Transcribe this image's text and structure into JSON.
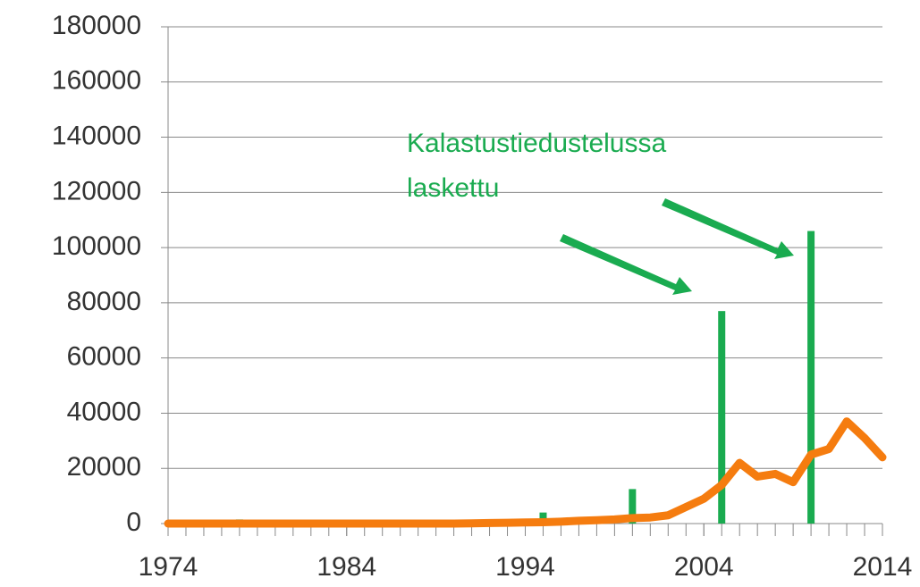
{
  "chart_data": {
    "type": "combo",
    "annotation": [
      "Kalastustiedustelussa",
      "laskettu"
    ],
    "annotation_color": "#1aab50",
    "xlim": [
      1974,
      2014
    ],
    "xticks": [
      1974,
      1984,
      1994,
      2004,
      2014
    ],
    "ylim": [
      0,
      180000
    ],
    "yticks": [
      0,
      20000,
      40000,
      60000,
      80000,
      100000,
      120000,
      140000,
      160000,
      180000
    ],
    "grid": true,
    "series": [
      {
        "type": "bar",
        "color": "#1aab50",
        "x": [
          1978,
          1995,
          2000,
          2005,
          2010
        ],
        "values": [
          1500,
          4000,
          12500,
          77000,
          106000
        ]
      },
      {
        "type": "line",
        "color": "#f57c0f",
        "x": [
          1974,
          1975,
          1976,
          1977,
          1978,
          1979,
          1980,
          1981,
          1982,
          1983,
          1984,
          1985,
          1986,
          1987,
          1988,
          1989,
          1990,
          1991,
          1992,
          1993,
          1994,
          1995,
          1996,
          1997,
          1998,
          1999,
          2000,
          2001,
          2002,
          2003,
          2004,
          2005,
          2006,
          2007,
          2008,
          2009,
          2010,
          2011,
          2012,
          2013,
          2014
        ],
        "values": [
          0,
          0,
          0,
          0,
          0,
          0,
          0,
          0,
          0,
          0,
          0,
          0,
          0,
          0,
          0,
          0,
          0,
          100,
          200,
          300,
          400,
          500,
          700,
          1000,
          1200,
          1500,
          2000,
          2200,
          3000,
          6000,
          9000,
          14000,
          22000,
          17000,
          18000,
          15000,
          25000,
          27000,
          37000,
          31000,
          24000
        ]
      }
    ]
  }
}
